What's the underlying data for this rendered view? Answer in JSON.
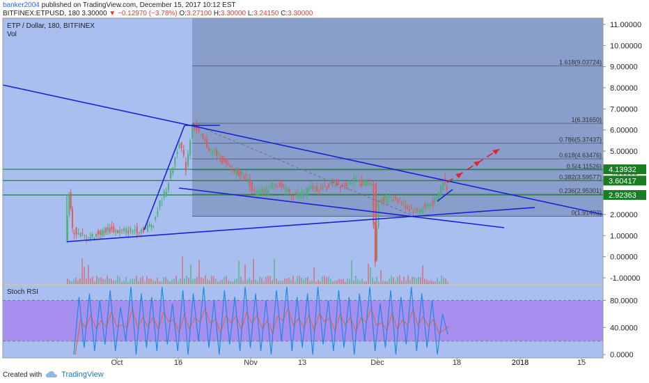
{
  "header": {
    "author": "banker2004",
    "published": "published on TradingView.com, December 15, 2017 10:12 EST",
    "symbol_line": "BITFINEX:ETPUSD, 180  3.30000",
    "change": "−0.12970 (−3.78%)",
    "o_label": "O:",
    "o_value": "3.27100",
    "h_label": "H:",
    "h_value": "3.30000",
    "l_label": "L:",
    "l_value": "3.24150",
    "c_label": "C:",
    "c_value": "3.30000"
  },
  "legend": {
    "title": "ETP / Dollar, 180, BITFINEX",
    "vol": "Vol",
    "stoch": "Stoch RSI"
  },
  "footer": {
    "created_with": "Created with",
    "brand": "TradingView"
  },
  "colors": {
    "pane_bg": "#a9bff0",
    "fib_bg": "#8a9ecb",
    "rsi_band": "#a78ff0",
    "trend_line": "#1a22d6",
    "green_level": "#1e8e2e",
    "badge_green": "#1a7d22",
    "arrow_red": "#e0242b",
    "candle_up": "#4caf78",
    "candle_down": "#e05a5a"
  },
  "chart_data": [
    {
      "type": "candlestick",
      "title": "ETP / Dollar, 180, BITFINEX",
      "x_ticks": [
        "Oct",
        "16",
        "Nov",
        "13",
        "Dec",
        "18",
        "2018",
        "15"
      ],
      "y_ticks": [
        "11.00000",
        "10.00000",
        "9.00000",
        "8.00000",
        "7.00000",
        "6.00000",
        "5.00000",
        "4.00000",
        "3.00000",
        "2.00000",
        "1.00000",
        "0.00000",
        "-1.00000"
      ],
      "ylim": [
        -1.3,
        11.3
      ],
      "price_series": [
        {
          "t": 0,
          "v": 0.75
        },
        {
          "t": 1,
          "v": 2.95
        },
        {
          "t": 2,
          "v": 1.3
        },
        {
          "t": 4,
          "v": 1.05
        },
        {
          "t": 7,
          "v": 0.9
        },
        {
          "t": 10,
          "v": 1.1
        },
        {
          "t": 13,
          "v": 1.3
        },
        {
          "t": 16,
          "v": 1.2
        },
        {
          "t": 20,
          "v": 1.25
        },
        {
          "t": 24,
          "v": 1.3
        },
        {
          "t": 27,
          "v": 1.6
        },
        {
          "t": 29,
          "v": 2.5
        },
        {
          "t": 31,
          "v": 3.2
        },
        {
          "t": 33,
          "v": 4.3
        },
        {
          "t": 35,
          "v": 5.5
        },
        {
          "t": 37,
          "v": 4.2
        },
        {
          "t": 39,
          "v": 6.3
        },
        {
          "t": 41,
          "v": 5.8
        },
        {
          "t": 44,
          "v": 5.1
        },
        {
          "t": 47,
          "v": 4.8
        },
        {
          "t": 50,
          "v": 4.2
        },
        {
          "t": 53,
          "v": 4.0
        },
        {
          "t": 56,
          "v": 3.7
        },
        {
          "t": 58,
          "v": 3.0
        },
        {
          "t": 61,
          "v": 3.1
        },
        {
          "t": 64,
          "v": 3.5
        },
        {
          "t": 67,
          "v": 3.2
        },
        {
          "t": 70,
          "v": 2.95
        },
        {
          "t": 73,
          "v": 3.0
        },
        {
          "t": 76,
          "v": 3.3
        },
        {
          "t": 79,
          "v": 3.2
        },
        {
          "t": 82,
          "v": 3.5
        },
        {
          "t": 85,
          "v": 3.4
        },
        {
          "t": 88,
          "v": 3.6
        },
        {
          "t": 91,
          "v": 3.5
        },
        {
          "t": 94,
          "v": 3.5
        },
        {
          "t": 95,
          "v": -0.2
        },
        {
          "t": 96,
          "v": 2.7
        },
        {
          "t": 99,
          "v": 2.8
        },
        {
          "t": 102,
          "v": 2.75
        },
        {
          "t": 105,
          "v": 2.3
        },
        {
          "t": 108,
          "v": 2.2
        },
        {
          "t": 111,
          "v": 2.4
        },
        {
          "t": 114,
          "v": 2.7
        },
        {
          "t": 116,
          "v": 3.6
        },
        {
          "t": 117,
          "v": 3.3
        }
      ],
      "fibonacci": [
        {
          "ratio": "1.618",
          "value": 9.03724,
          "label": "1.618(9.03724)"
        },
        {
          "ratio": "1",
          "value": 6.3165,
          "label": "1(6.31650)"
        },
        {
          "ratio": "0.786",
          "value": 5.37437,
          "label": "0.786(5.37437)"
        },
        {
          "ratio": "0.618",
          "value": 4.63476,
          "label": "0.618(4.63476)"
        },
        {
          "ratio": "0.5",
          "value": 4.11526,
          "label": "0.5(4.11526)"
        },
        {
          "ratio": "0.382",
          "value": 3.59577,
          "label": "0.382(3.59577)"
        },
        {
          "ratio": "0.236",
          "value": 2.95301,
          "label": "0.236(2.95301)"
        },
        {
          "ratio": "0",
          "value": 1.91402,
          "label": "0(1.91402)"
        }
      ],
      "horizontal_levels": [
        {
          "value": 4.13932,
          "label": "4.13932"
        },
        {
          "value": 3.60417,
          "label": "3.60417"
        },
        {
          "value": 2.92363,
          "label": "2.92363"
        }
      ],
      "legend": "none",
      "grid": false
    },
    {
      "type": "line",
      "title": "Stoch RSI",
      "y_ticks": [
        "80.0000",
        "40.0000",
        "0.0000"
      ],
      "ylim": [
        -5,
        102
      ],
      "bands": [
        20,
        80
      ],
      "series": [
        {
          "name": "",
          "values": [
            0,
            85,
            10,
            90,
            5,
            80,
            15,
            95,
            5,
            70,
            20,
            100,
            0,
            90,
            10,
            85,
            5,
            100,
            15,
            75,
            5,
            95,
            0,
            90,
            20,
            100,
            10,
            80,
            0,
            95,
            15,
            85,
            5,
            100,
            10,
            90,
            5,
            80,
            0,
            95,
            20,
            100,
            5,
            85,
            10,
            90,
            0,
            100,
            15,
            80,
            5,
            95,
            10,
            85,
            0,
            90,
            20,
            100,
            5,
            75,
            10,
            95,
            0,
            85,
            15,
            100,
            5,
            90,
            10,
            80,
            0,
            60,
            30
          ]
        }
      ]
    }
  ]
}
